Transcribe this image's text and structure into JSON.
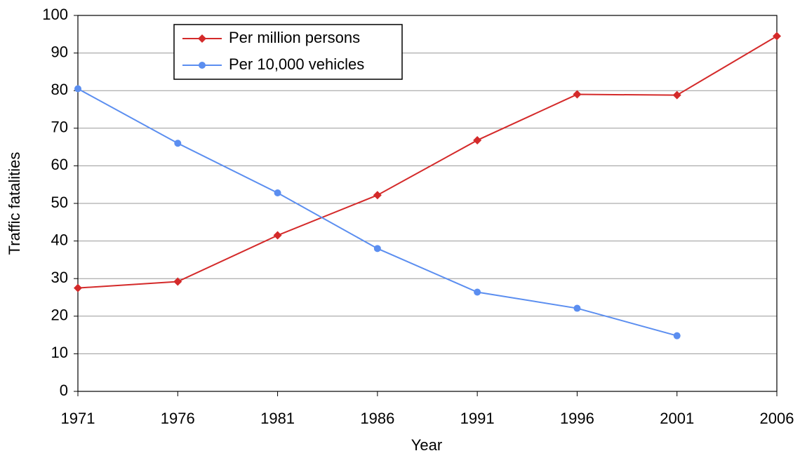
{
  "chart_data": {
    "type": "line",
    "x_label": "Year",
    "y_label": "Traffic fatalities",
    "x": [
      1971,
      1976,
      1981,
      1986,
      1991,
      1996,
      2001,
      2006
    ],
    "series": [
      {
        "name": "Per million persons",
        "color": "#d42a2a",
        "marker": "diamond",
        "values": [
          27.5,
          29.2,
          41.5,
          52.2,
          66.8,
          79,
          78.8,
          94.5
        ]
      },
      {
        "name": "Per 10,000 vehicles",
        "color": "#5b8ef0",
        "marker": "circle",
        "values": [
          80.5,
          66,
          52.8,
          38,
          26.4,
          22.1,
          14.8,
          null
        ]
      }
    ],
    "xlim": [
      1971,
      2006
    ],
    "xticks": [
      1971,
      1976,
      1981,
      1986,
      1991,
      1996,
      2001,
      2006
    ],
    "ylim": [
      0,
      100
    ],
    "yticks": [
      0,
      10,
      20,
      30,
      40,
      50,
      60,
      70,
      80,
      90,
      100
    ],
    "grid": true,
    "legend": "upper left"
  }
}
